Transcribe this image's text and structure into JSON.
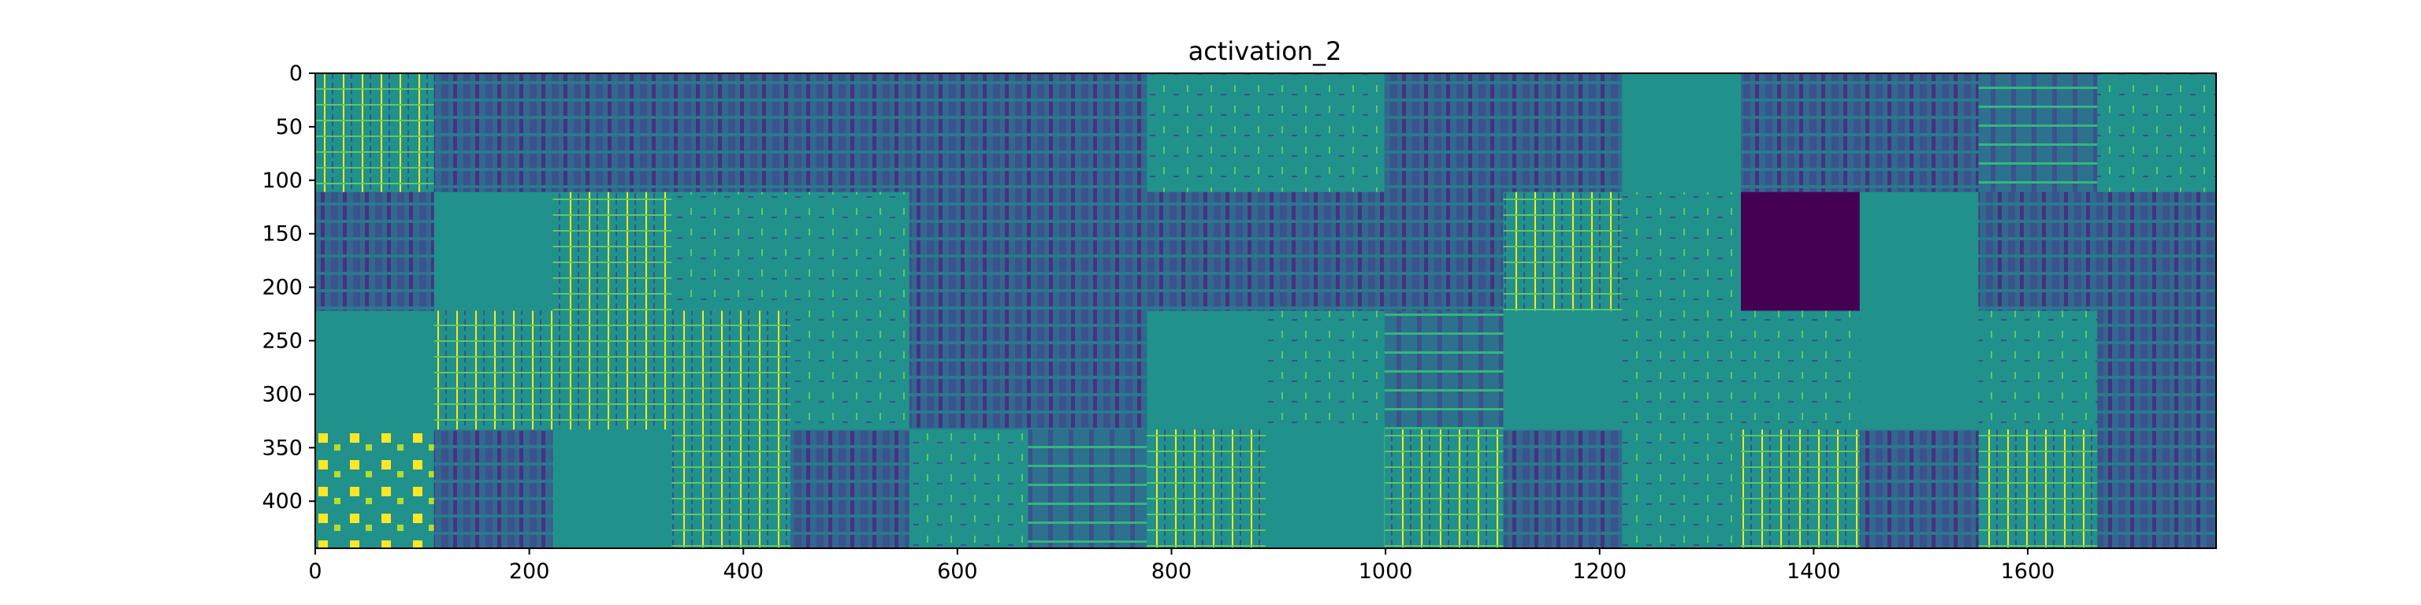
{
  "chart_data": {
    "type": "heatmap",
    "title": "activation_2",
    "xlabel": "",
    "ylabel": "",
    "xlim": [
      0,
      1776
    ],
    "ylim": [
      444,
      0
    ],
    "grid": false,
    "colormap": "viridis",
    "tile_size": 111,
    "grid_shape": {
      "rows": 4,
      "cols": 16
    },
    "x_ticks": [
      0,
      200,
      400,
      600,
      800,
      1000,
      1200,
      1400,
      1600
    ],
    "y_ticks": [
      0,
      50,
      100,
      150,
      200,
      250,
      300,
      350,
      400
    ],
    "tiles": [
      [
        "edge",
        "dark",
        "dark",
        "dark",
        "dark",
        "dark",
        "dark",
        "sparse",
        "sparse",
        "dark",
        "dark",
        "flat",
        "dark",
        "dark",
        "mid",
        "sparse"
      ],
      [
        "dark",
        "flat",
        "edge",
        "sparse",
        "sparse",
        "dark",
        "dark",
        "dark",
        "dark",
        "dark",
        "edge",
        "sparse",
        "dead",
        "flat",
        "dark",
        "dark"
      ],
      [
        "flat",
        "edge",
        "edge",
        "edge",
        "sparse",
        "dark",
        "dark",
        "flat",
        "sparse",
        "mid",
        "flat",
        "sparse",
        "sparse",
        "flat",
        "sparse",
        "dark"
      ],
      [
        "blob",
        "dark",
        "flat",
        "edge",
        "dark",
        "sparse",
        "mid",
        "edge",
        "flat",
        "edge",
        "dark",
        "sparse",
        "edge",
        "dark",
        "edge",
        "dark"
      ]
    ]
  },
  "colors": {
    "flat": "#21918c",
    "dead": "#440154",
    "bright": "#fde725",
    "dark": "#3b528b"
  }
}
